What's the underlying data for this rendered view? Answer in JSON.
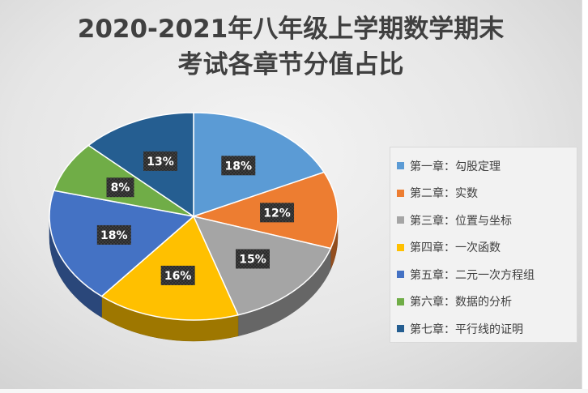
{
  "chart_data": {
    "type": "pie",
    "title_lines": [
      "2020-2021年八年级上学期数学期末",
      "考试各章节分值占比"
    ],
    "slices": [
      {
        "label": "第一章：勾股定理",
        "value": 18,
        "display": "18%",
        "color": "#5B9BD5"
      },
      {
        "label": "第二章：实数",
        "value": 12,
        "display": "12%",
        "color": "#ED7D31"
      },
      {
        "label": "第三章：位置与坐标",
        "value": 15,
        "display": "15%",
        "color": "#A5A5A5"
      },
      {
        "label": "第四章：一次函数",
        "value": 16,
        "display": "16%",
        "color": "#FFC000"
      },
      {
        "label": "第五章：二元一次方程组",
        "value": 18,
        "display": "18%",
        "color": "#4472C4"
      },
      {
        "label": "第六章：数据的分析",
        "value": 8,
        "display": "8%",
        "color": "#70AD47"
      },
      {
        "label": "第七章：平行线的证明",
        "value": 13,
        "display": "13%",
        "color": "#255E91"
      }
    ],
    "legend_position": "right"
  }
}
